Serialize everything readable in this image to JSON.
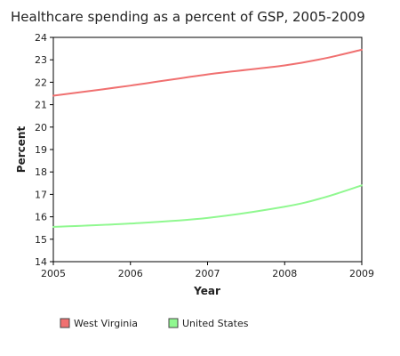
{
  "chart_data": {
    "type": "line",
    "title": "Healthcare spending as a percent of GSP, 2005-2009",
    "xlabel": "Year",
    "ylabel": "Percent",
    "x": [
      2005,
      2006,
      2007,
      2008,
      2008.5,
      2009
    ],
    "xticks": [
      "2005",
      "2006",
      "2007",
      "2008",
      "2009"
    ],
    "xlim": [
      2005,
      2009
    ],
    "ylim": [
      14,
      24
    ],
    "yticks": [
      "14",
      "15",
      "16",
      "17",
      "18",
      "19",
      "20",
      "21",
      "22",
      "23",
      "24"
    ],
    "grid": false,
    "legend_position": "bottom",
    "series": [
      {
        "name": "West Virginia",
        "color": "#f07070",
        "legend_fill": "#f07070",
        "values": [
          21.4,
          21.85,
          22.35,
          22.75,
          23.05,
          23.45
        ]
      },
      {
        "name": "United States",
        "color": "#90f890",
        "legend_fill": "#90f890",
        "values": [
          15.55,
          15.7,
          15.95,
          16.45,
          16.85,
          17.4
        ]
      }
    ]
  }
}
